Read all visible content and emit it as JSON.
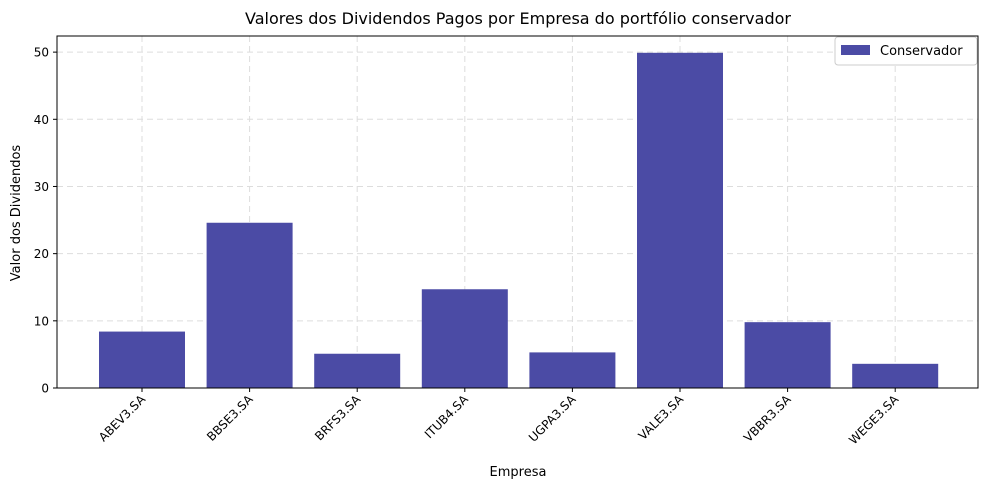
{
  "chart_data": {
    "type": "bar",
    "title": "Valores dos Dividendos Pagos por Empresa do portfólio conservador",
    "xlabel": "Empresa",
    "ylabel": "Valor dos Dividendos",
    "categories": [
      "ABEV3.SA",
      "BBSE3.SA",
      "BRFS3.SA",
      "ITUB4.SA",
      "UGPA3.SA",
      "VALE3.SA",
      "VBBR3.SA",
      "WEGE3.SA"
    ],
    "series": [
      {
        "name": "Conservador",
        "values": [
          8.4,
          24.6,
          5.1,
          14.7,
          5.3,
          49.9,
          9.8,
          3.6
        ],
        "color": "#4b4ba5"
      }
    ],
    "ylim": [
      0,
      52.4
    ],
    "yticks": [
      0,
      10,
      20,
      30,
      40,
      50
    ],
    "grid": true,
    "legend_position": "top-right",
    "xtick_rotation": 45
  }
}
